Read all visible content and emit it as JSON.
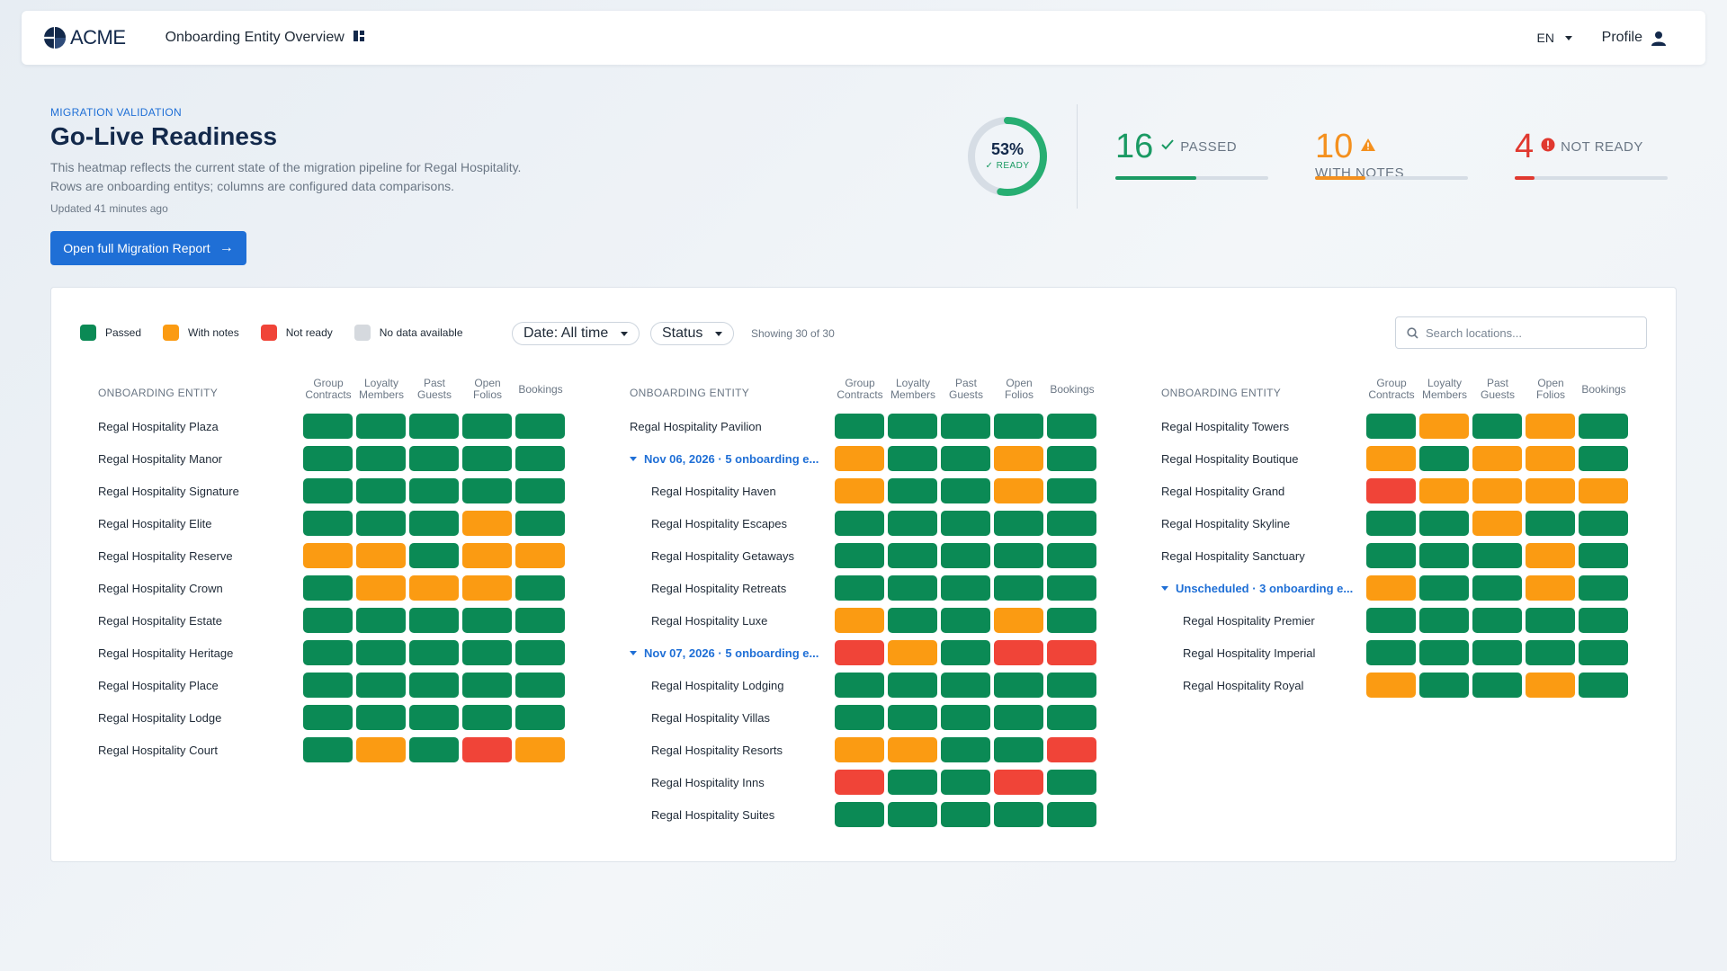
{
  "colors": {
    "pass": "#0b8a55",
    "notes": "#fb9b12",
    "fail": "#f04438",
    "nodata": "#d5d9de",
    "accent": "#1f6fd6"
  },
  "topbar": {
    "logo_text": "ACME",
    "app_title": "Onboarding Entity Overview",
    "lang": "EN",
    "profile": "Profile"
  },
  "hero": {
    "eyebrow": "MIGRATION VALIDATION",
    "title": "Go-Live Readiness",
    "description": "This heatmap reflects the current state of the migration pipeline for Regal Hospitality. Rows are onboarding entitys; columns are configured data comparisons.",
    "updated": "Updated 41 minutes ago",
    "report_button": "Open full Migration Report",
    "ready_percent": "53%",
    "ready_fraction": 0.53,
    "ready_label": "READY"
  },
  "kpis": [
    {
      "value": "16",
      "label": "PASSED",
      "color": "#1a9a63",
      "icon": "check-icon",
      "progress": 0.53
    },
    {
      "value": "10",
      "label": "WITH NOTES",
      "color": "#f4901e",
      "icon": "warning-icon",
      "progress": 0.33
    },
    {
      "value": "4",
      "label": "NOT READY",
      "color": "#e0382f",
      "icon": "alert-icon",
      "progress": 0.13
    }
  ],
  "legend": [
    {
      "label": "Passed",
      "key": "pass"
    },
    {
      "label": "With notes",
      "key": "notes"
    },
    {
      "label": "Not ready",
      "key": "fail"
    },
    {
      "label": "No data available",
      "key": "nodata"
    }
  ],
  "filters": {
    "date": "Date: All time",
    "status": "Status",
    "showing": "Showing 30 of 30",
    "search_placeholder": "Search locations..."
  },
  "table_header": {
    "entity": "ONBOARDING ENTITY",
    "columns": [
      [
        "Group",
        "Contracts"
      ],
      [
        "Loyalty",
        "Members"
      ],
      [
        "Past",
        "Guests"
      ],
      [
        "Open",
        "Folios"
      ],
      [
        "Bookings"
      ]
    ]
  },
  "heatmap": [
    {
      "rows": [
        {
          "name": "Regal Hospitality Plaza",
          "cells": [
            "pass",
            "pass",
            "pass",
            "pass",
            "pass"
          ]
        },
        {
          "name": "Regal Hospitality Manor",
          "cells": [
            "pass",
            "pass",
            "pass",
            "pass",
            "pass"
          ]
        },
        {
          "name": "Regal Hospitality Signature",
          "cells": [
            "pass",
            "pass",
            "pass",
            "pass",
            "pass"
          ]
        },
        {
          "name": "Regal Hospitality Elite",
          "cells": [
            "pass",
            "pass",
            "pass",
            "notes",
            "pass"
          ]
        },
        {
          "name": "Regal Hospitality Reserve",
          "cells": [
            "notes",
            "notes",
            "pass",
            "notes",
            "notes"
          ]
        },
        {
          "name": "Regal Hospitality Crown",
          "cells": [
            "pass",
            "notes",
            "notes",
            "notes",
            "pass"
          ]
        },
        {
          "name": "Regal Hospitality Estate",
          "cells": [
            "pass",
            "pass",
            "pass",
            "pass",
            "pass"
          ]
        },
        {
          "name": "Regal Hospitality Heritage",
          "cells": [
            "pass",
            "pass",
            "pass",
            "pass",
            "pass"
          ]
        },
        {
          "name": "Regal Hospitality Place",
          "cells": [
            "pass",
            "pass",
            "pass",
            "pass",
            "pass"
          ]
        },
        {
          "name": "Regal Hospitality Lodge",
          "cells": [
            "pass",
            "pass",
            "pass",
            "pass",
            "pass"
          ]
        },
        {
          "name": "Regal Hospitality Court",
          "cells": [
            "pass",
            "notes",
            "pass",
            "fail",
            "notes"
          ]
        }
      ]
    },
    {
      "rows": [
        {
          "name": "Regal Hospitality Pavilion",
          "cells": [
            "pass",
            "pass",
            "pass",
            "pass",
            "pass"
          ]
        },
        {
          "name": "Nov 06, 2026 · 5 onboarding e...",
          "group": true,
          "cells": [
            "notes",
            "pass",
            "pass",
            "notes",
            "pass"
          ]
        },
        {
          "name": "Regal Hospitality Haven",
          "child": true,
          "cells": [
            "notes",
            "pass",
            "pass",
            "notes",
            "pass"
          ]
        },
        {
          "name": "Regal Hospitality Escapes",
          "child": true,
          "cells": [
            "pass",
            "pass",
            "pass",
            "pass",
            "pass"
          ]
        },
        {
          "name": "Regal Hospitality Getaways",
          "child": true,
          "cells": [
            "pass",
            "pass",
            "pass",
            "pass",
            "pass"
          ]
        },
        {
          "name": "Regal Hospitality Retreats",
          "child": true,
          "cells": [
            "pass",
            "pass",
            "pass",
            "pass",
            "pass"
          ]
        },
        {
          "name": "Regal Hospitality Luxe",
          "child": true,
          "cells": [
            "notes",
            "pass",
            "pass",
            "notes",
            "pass"
          ]
        },
        {
          "name": "Nov 07, 2026 · 5 onboarding e...",
          "group": true,
          "cells": [
            "fail",
            "notes",
            "pass",
            "fail",
            "fail"
          ]
        },
        {
          "name": "Regal Hospitality Lodging",
          "child": true,
          "cells": [
            "pass",
            "pass",
            "pass",
            "pass",
            "pass"
          ]
        },
        {
          "name": "Regal Hospitality Villas",
          "child": true,
          "cells": [
            "pass",
            "pass",
            "pass",
            "pass",
            "pass"
          ]
        },
        {
          "name": "Regal Hospitality Resorts",
          "child": true,
          "cells": [
            "notes",
            "notes",
            "pass",
            "pass",
            "fail"
          ]
        },
        {
          "name": "Regal Hospitality Inns",
          "child": true,
          "cells": [
            "fail",
            "pass",
            "pass",
            "fail",
            "pass"
          ]
        },
        {
          "name": "Regal Hospitality Suites",
          "child": true,
          "cells": [
            "pass",
            "pass",
            "pass",
            "pass",
            "pass"
          ]
        }
      ]
    },
    {
      "rows": [
        {
          "name": "Regal Hospitality Towers",
          "cells": [
            "pass",
            "notes",
            "pass",
            "notes",
            "pass"
          ]
        },
        {
          "name": "Regal Hospitality Boutique",
          "cells": [
            "notes",
            "pass",
            "notes",
            "notes",
            "pass"
          ]
        },
        {
          "name": "Regal Hospitality Grand",
          "cells": [
            "fail",
            "notes",
            "notes",
            "notes",
            "notes"
          ]
        },
        {
          "name": "Regal Hospitality Skyline",
          "cells": [
            "pass",
            "pass",
            "notes",
            "pass",
            "pass"
          ]
        },
        {
          "name": "Regal Hospitality Sanctuary",
          "cells": [
            "pass",
            "pass",
            "pass",
            "notes",
            "pass"
          ]
        },
        {
          "name": "Unscheduled · 3 onboarding e...",
          "group": true,
          "cells": [
            "notes",
            "pass",
            "pass",
            "notes",
            "pass"
          ]
        },
        {
          "name": "Regal Hospitality Premier",
          "child": true,
          "cells": [
            "pass",
            "pass",
            "pass",
            "pass",
            "pass"
          ]
        },
        {
          "name": "Regal Hospitality Imperial",
          "child": true,
          "cells": [
            "pass",
            "pass",
            "pass",
            "pass",
            "pass"
          ]
        },
        {
          "name": "Regal Hospitality Royal",
          "child": true,
          "cells": [
            "notes",
            "pass",
            "pass",
            "notes",
            "pass"
          ]
        }
      ]
    }
  ]
}
